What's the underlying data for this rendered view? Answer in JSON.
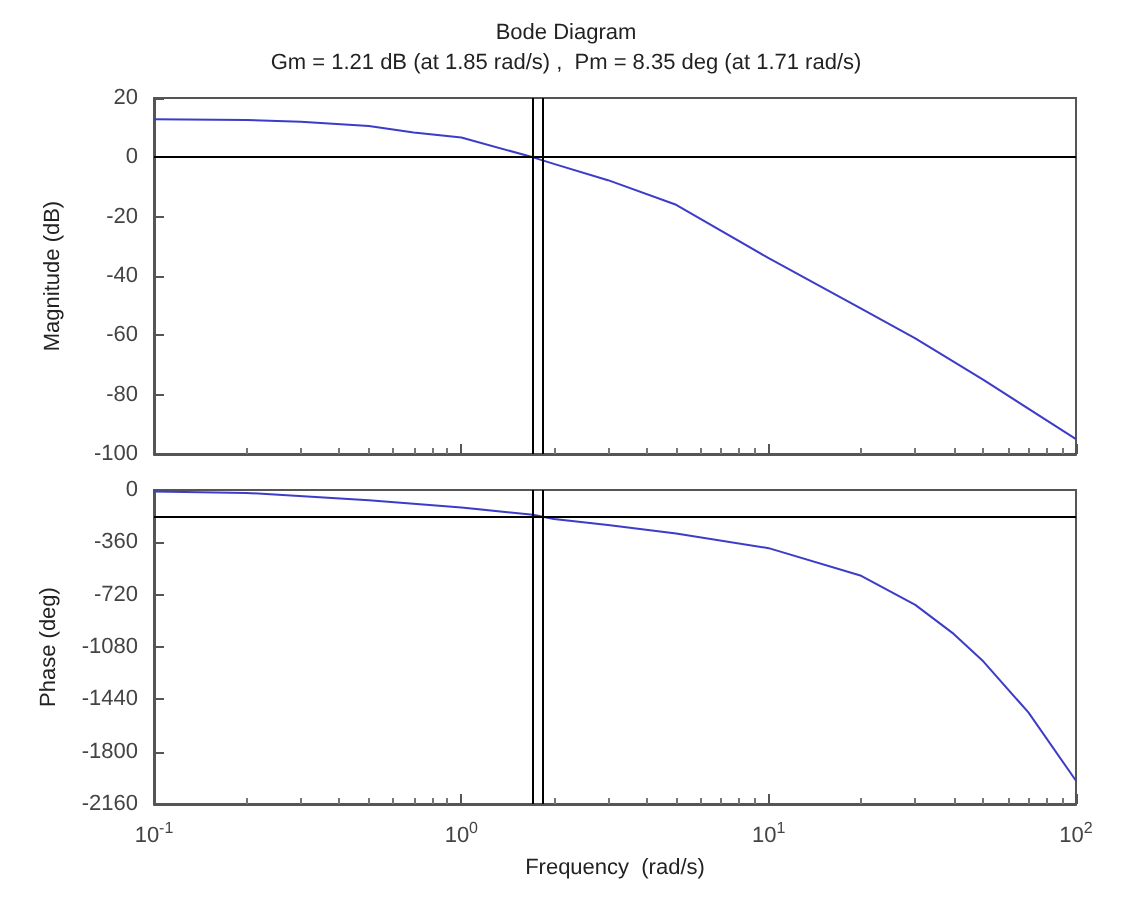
{
  "chart_data": [
    {
      "type": "line",
      "title": "Bode Diagram",
      "subtitle": "Gm = 1.21 dB (at 1.85 rad/s) ,  Pm = 8.35 deg (at 1.71 rad/s)",
      "ylabel": "Magnitude (dB)",
      "log": "x",
      "tick_labels": "y",
      "grid": false,
      "xlim": [
        0.1,
        100
      ],
      "xticks": [
        {
          "value": 0.1,
          "label": null
        },
        {
          "value": 1,
          "label": null
        },
        {
          "value": 10,
          "label": null
        },
        {
          "value": 100,
          "label": null
        }
      ],
      "ylim": [
        -100,
        20
      ],
      "yticks": [
        -100,
        -80,
        -60,
        -40,
        -20,
        0,
        20
      ],
      "x": [
        0.1,
        0.2,
        0.3,
        0.5,
        0.7,
        1,
        1.71,
        2,
        3,
        5,
        10,
        20,
        30,
        50,
        100
      ],
      "series": [
        {
          "color": "#3c3cc8",
          "values": [
            12.8,
            12.6,
            12.0,
            10.6,
            8.4,
            6.7,
            0,
            -2.2,
            -7.7,
            -16,
            -34,
            -51,
            -61,
            -75,
            -95
          ]
        }
      ],
      "ref_lines": [
        {
          "axis": "y",
          "value": 0,
          "color": "#000000"
        },
        {
          "axis": "x",
          "value": 1.71,
          "color": "#000000"
        },
        {
          "axis": "x",
          "value": 1.85,
          "color": "#000000"
        }
      ]
    },
    {
      "type": "line",
      "xlabel": "Frequency  (rad/s)",
      "ylabel": "Phase (deg)",
      "log": "x",
      "grid": false,
      "xlim": [
        0.1,
        100
      ],
      "xticks": [
        {
          "value": 0.1,
          "label": "10$^{-1}$"
        },
        {
          "value": 1,
          "label": "10$^{0}$"
        },
        {
          "value": 10,
          "label": "10$^{1}$"
        },
        {
          "value": 100,
          "label": "10$^{2}$"
        }
      ],
      "ylim": [
        -2160,
        0
      ],
      "yticks": [
        -2160,
        -1800,
        -1440,
        -1080,
        -720,
        -360,
        0
      ],
      "x": [
        0.1,
        0.2,
        0.5,
        1,
        1.71,
        2,
        3,
        5,
        10,
        20,
        30,
        40,
        50,
        70,
        100
      ],
      "series": [
        {
          "color": "#3c3cc8",
          "values": [
            -10,
            -20,
            -70,
            -120,
            -170,
            -200,
            -240,
            -300,
            -400,
            -590,
            -790,
            -990,
            -1180,
            -1530,
            -2000
          ]
        }
      ],
      "ref_lines": [
        {
          "axis": "y",
          "value": -180,
          "color": "#000000"
        },
        {
          "axis": "x",
          "value": 1.71,
          "color": "#000000"
        },
        {
          "axis": "x",
          "value": 1.85,
          "color": "#000000"
        }
      ]
    }
  ]
}
